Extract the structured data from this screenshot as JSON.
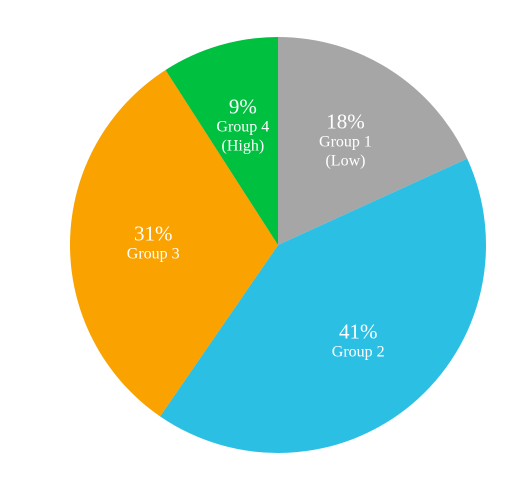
{
  "chart_data": {
    "type": "pie",
    "categories": [
      "Group 1\n(Low)",
      "Group 2",
      "Group 3",
      "Group 4\n(High)"
    ],
    "values": [
      18,
      41,
      31,
      9
    ],
    "value_labels": [
      "18%",
      "41%",
      "31%",
      "9%"
    ],
    "colors": [
      "#a6a6a6",
      "#2bbfe4",
      "#f9a200",
      "#00c040"
    ]
  }
}
